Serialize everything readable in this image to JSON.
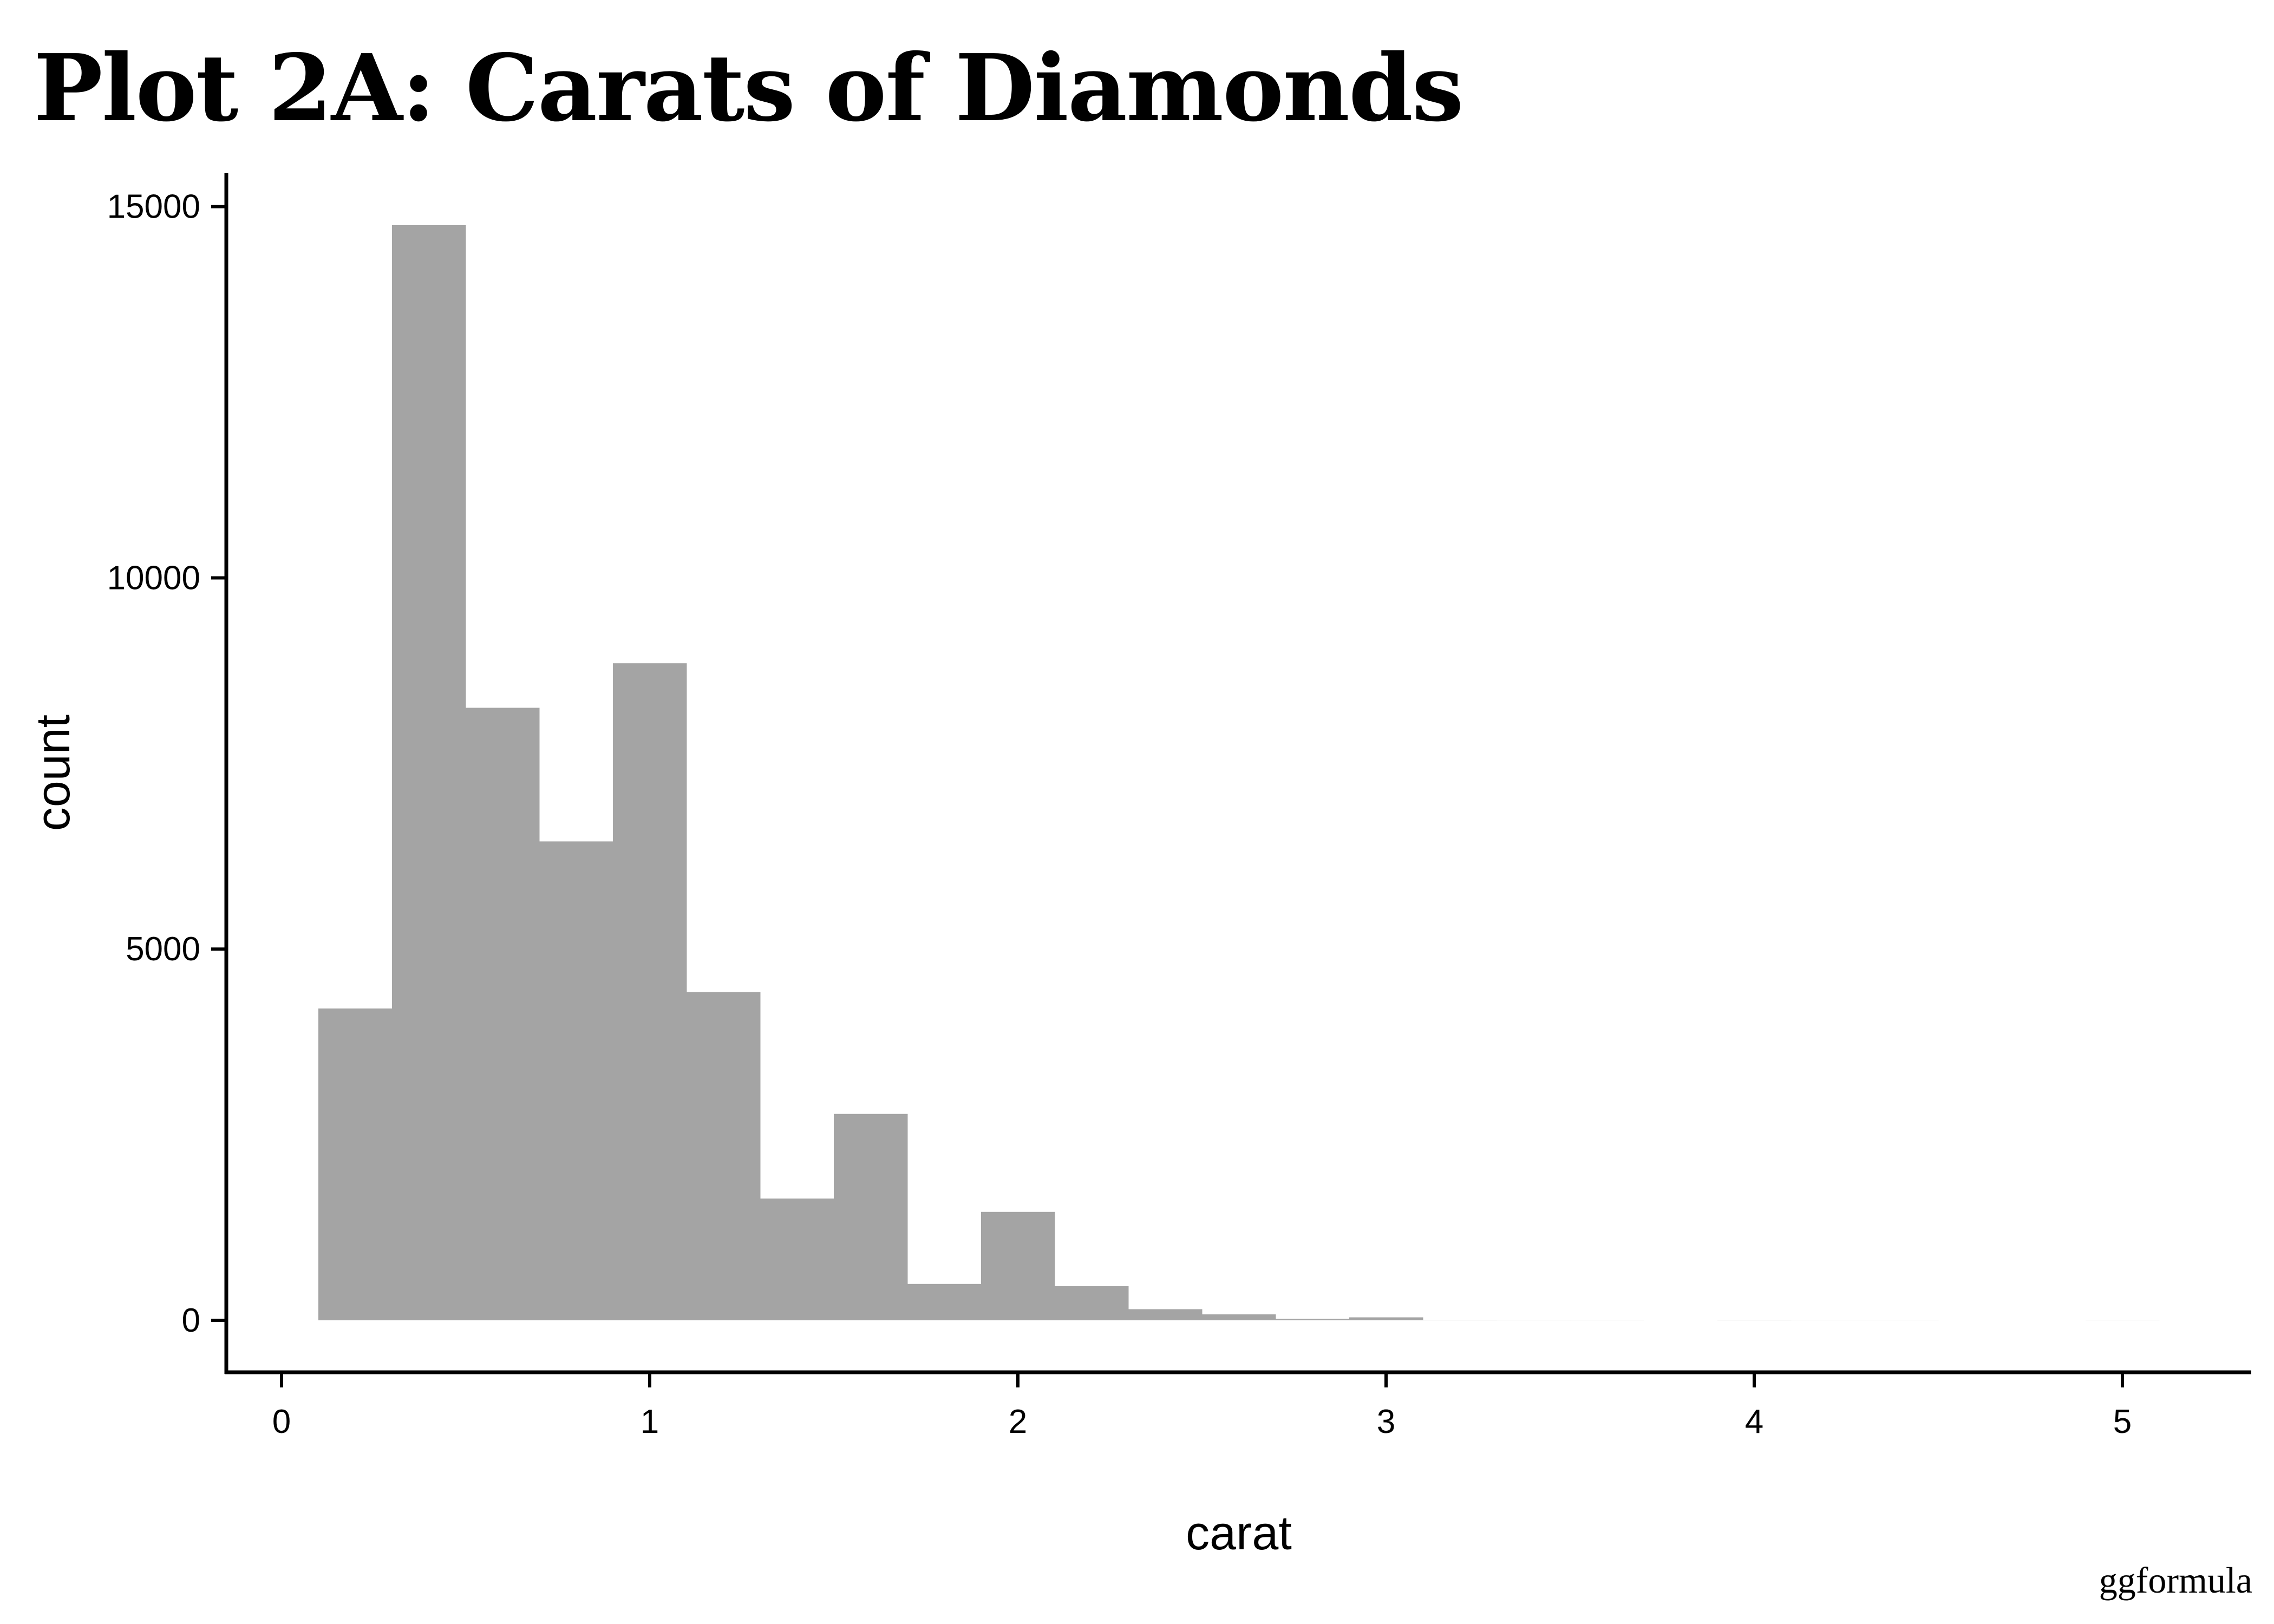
{
  "chart_data": {
    "type": "bar",
    "title": "Plot 2A: Carats of Diamonds",
    "caption": "ggformula",
    "xlabel": "carat",
    "ylabel": "count",
    "xlim": [
      -0.15,
      5.35
    ],
    "ylim": [
      -700,
      15450
    ],
    "x_ticks": [
      0,
      1,
      2,
      3,
      4,
      5
    ],
    "y_ticks": [
      0,
      5000,
      10000,
      15000
    ],
    "bin_width": 0.2,
    "bins": [
      {
        "x0": 0.1,
        "x1": 0.3,
        "count": 4200
      },
      {
        "x0": 0.3,
        "x1": 0.5,
        "count": 14750
      },
      {
        "x0": 0.5,
        "x1": 0.7,
        "count": 8250
      },
      {
        "x0": 0.7,
        "x1": 0.9,
        "count": 6450
      },
      {
        "x0": 0.9,
        "x1": 1.1,
        "count": 8850
      },
      {
        "x0": 1.1,
        "x1": 1.3,
        "count": 4420
      },
      {
        "x0": 1.3,
        "x1": 1.5,
        "count": 1640
      },
      {
        "x0": 1.5,
        "x1": 1.7,
        "count": 2780
      },
      {
        "x0": 1.7,
        "x1": 1.9,
        "count": 490
      },
      {
        "x0": 1.9,
        "x1": 2.1,
        "count": 1460
      },
      {
        "x0": 2.1,
        "x1": 2.3,
        "count": 460
      },
      {
        "x0": 2.3,
        "x1": 2.5,
        "count": 150
      },
      {
        "x0": 2.5,
        "x1": 2.7,
        "count": 80
      },
      {
        "x0": 2.7,
        "x1": 2.9,
        "count": 20
      },
      {
        "x0": 2.9,
        "x1": 3.1,
        "count": 40
      },
      {
        "x0": 3.1,
        "x1": 3.3,
        "count": 5
      },
      {
        "x0": 3.3,
        "x1": 3.5,
        "count": 3
      },
      {
        "x0": 3.5,
        "x1": 3.7,
        "count": 3
      },
      {
        "x0": 3.7,
        "x1": 3.9,
        "count": 0
      },
      {
        "x0": 3.9,
        "x1": 4.1,
        "count": 5
      },
      {
        "x0": 4.1,
        "x1": 4.3,
        "count": 2
      },
      {
        "x0": 4.3,
        "x1": 4.5,
        "count": 2
      },
      {
        "x0": 4.5,
        "x1": 4.7,
        "count": 0
      },
      {
        "x0": 4.7,
        "x1": 4.9,
        "count": 0
      },
      {
        "x0": 4.9,
        "x1": 5.1,
        "count": 3
      }
    ],
    "colors": {
      "bar": "#a4a4a4",
      "axis": "#000000"
    },
    "grid": false
  }
}
